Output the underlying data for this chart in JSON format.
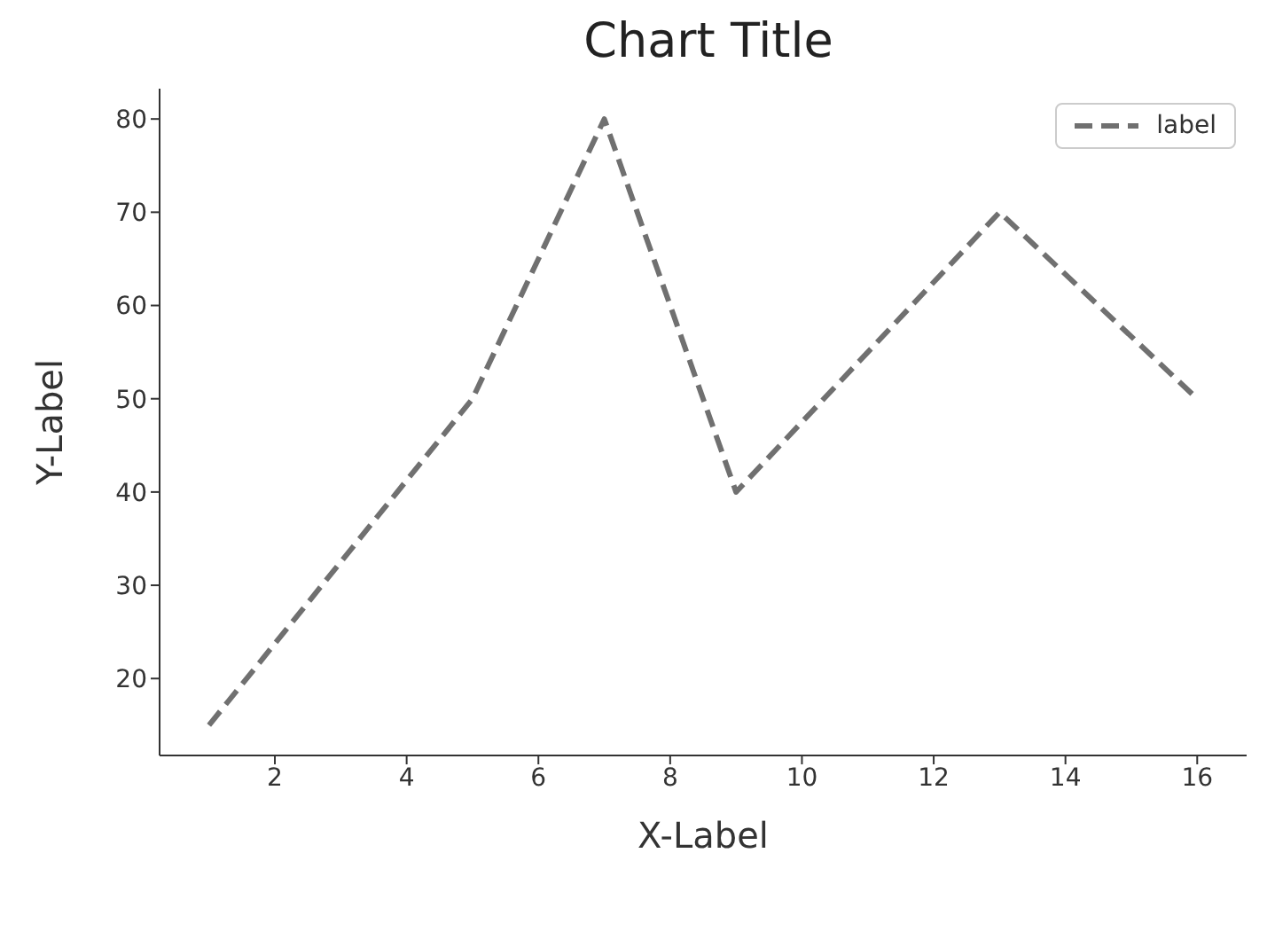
{
  "chart_data": {
    "type": "line",
    "title": "Chart Title",
    "xlabel": "X-Label",
    "ylabel": "Y-Label",
    "x": [
      1,
      5,
      7,
      9,
      13,
      16
    ],
    "series": [
      {
        "name": "label",
        "color": "#707070",
        "values": [
          15,
          50,
          80,
          40,
          70,
          50
        ]
      }
    ],
    "xlim": [
      0.25,
      16.75
    ],
    "xticks": [
      2,
      4,
      6,
      8,
      10,
      12,
      14,
      16
    ],
    "ylim": [
      11.75,
      83.25
    ],
    "yticks": [
      20,
      30,
      40,
      50,
      60,
      70,
      80
    ],
    "line_style": "dashed",
    "marker": "none",
    "grid": false,
    "legend": "top right"
  }
}
